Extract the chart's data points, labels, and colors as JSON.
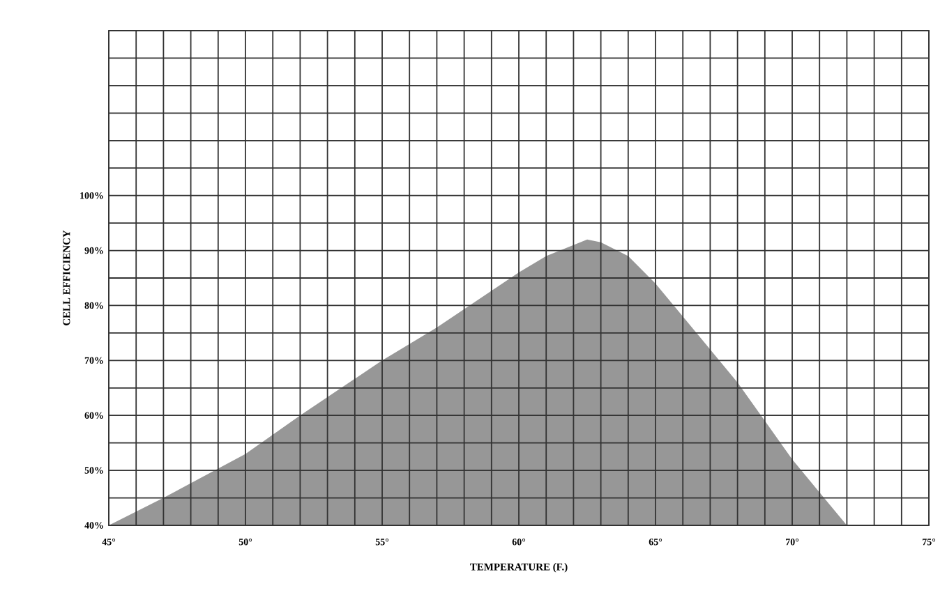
{
  "chart_data": {
    "type": "area",
    "xlabel": "TEMPERATURE (F.)",
    "ylabel": "CELL EFFICIENCY",
    "color": "#979797",
    "grid": true,
    "xlim": [
      45,
      75
    ],
    "ylim": [
      40,
      130
    ],
    "xticks": [
      {
        "value": 45,
        "label": "45°"
      },
      {
        "value": 46,
        "label": null
      },
      {
        "value": 47,
        "label": null
      },
      {
        "value": 48,
        "label": null
      },
      {
        "value": 49,
        "label": null
      },
      {
        "value": 50,
        "label": "50°"
      },
      {
        "value": 51,
        "label": null
      },
      {
        "value": 52,
        "label": null
      },
      {
        "value": 53,
        "label": null
      },
      {
        "value": 54,
        "label": null
      },
      {
        "value": 55,
        "label": "55°"
      },
      {
        "value": 56,
        "label": null
      },
      {
        "value": 57,
        "label": null
      },
      {
        "value": 58,
        "label": null
      },
      {
        "value": 59,
        "label": null
      },
      {
        "value": 60,
        "label": "60°"
      },
      {
        "value": 61,
        "label": null
      },
      {
        "value": 62,
        "label": null
      },
      {
        "value": 63,
        "label": null
      },
      {
        "value": 64,
        "label": null
      },
      {
        "value": 65,
        "label": "65°"
      },
      {
        "value": 66,
        "label": null
      },
      {
        "value": 67,
        "label": null
      },
      {
        "value": 68,
        "label": null
      },
      {
        "value": 69,
        "label": null
      },
      {
        "value": 70,
        "label": "70°"
      },
      {
        "value": 71,
        "label": null
      },
      {
        "value": 72,
        "label": null
      },
      {
        "value": 73,
        "label": null
      },
      {
        "value": 74,
        "label": null
      },
      {
        "value": 75,
        "label": "75°"
      }
    ],
    "yticks": [
      {
        "value": 40,
        "label": "40%"
      },
      {
        "value": 45,
        "label": null
      },
      {
        "value": 50,
        "label": "50%"
      },
      {
        "value": 55,
        "label": null
      },
      {
        "value": 60,
        "label": "60%"
      },
      {
        "value": 65,
        "label": null
      },
      {
        "value": 70,
        "label": "70%"
      },
      {
        "value": 75,
        "label": null
      },
      {
        "value": 80,
        "label": "80%"
      },
      {
        "value": 85,
        "label": null
      },
      {
        "value": 90,
        "label": "90%"
      },
      {
        "value": 95,
        "label": null
      },
      {
        "value": 100,
        "label": "100%"
      },
      {
        "value": 105,
        "label": null
      },
      {
        "value": 110,
        "label": null
      },
      {
        "value": 115,
        "label": null
      },
      {
        "value": 120,
        "label": null
      },
      {
        "value": 125,
        "label": null
      },
      {
        "value": 130,
        "label": null
      }
    ],
    "x": [
      45,
      47,
      50,
      52,
      55,
      57,
      60,
      61,
      62,
      62.5,
      63,
      64,
      65,
      66,
      67,
      68,
      69,
      70,
      71,
      72
    ],
    "values": [
      40,
      45,
      53,
      60,
      70,
      76,
      86,
      89,
      91,
      92,
      91.5,
      89,
      84,
      78,
      72,
      66,
      59,
      52,
      46,
      40
    ]
  }
}
